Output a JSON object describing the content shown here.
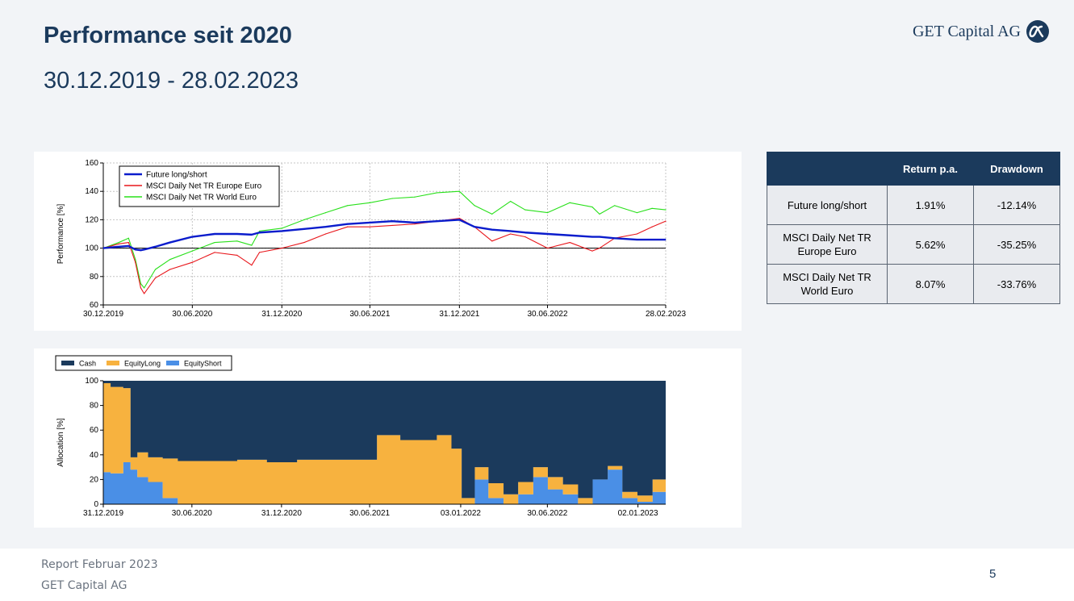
{
  "header": {
    "title": "Performance seit 2020",
    "subtitle": "30.12.2019 - 28.02.2023",
    "logo_text": "GET Capital AG"
  },
  "stats_table": {
    "columns": [
      "",
      "Return p.a.",
      "Drawdown"
    ],
    "rows": [
      {
        "name": "Future long/short",
        "return": "1.91%",
        "drawdown": "-12.14%"
      },
      {
        "name": "MSCI Daily Net TR Europe Euro",
        "return": "5.62%",
        "drawdown": "-35.25%"
      },
      {
        "name": "MSCI Daily Net TR World Euro",
        "return": "8.07%",
        "drawdown": "-33.76%"
      }
    ]
  },
  "footer": {
    "report": "Report Februar 2023",
    "company": "GET Capital AG",
    "page": "5"
  },
  "colors": {
    "navy": "#1b3a5c",
    "future": "#0a1ccc",
    "europe": "#e8161b",
    "world": "#28e01a",
    "cash": "#1b3a5c",
    "equity_long": "#f7b23f",
    "equity_short": "#4a8fe6"
  },
  "chart_data": [
    {
      "type": "line",
      "ylabel": "Performance [%]",
      "xlabel": "",
      "ylim": [
        60,
        160
      ],
      "yticks": [
        60,
        80,
        100,
        120,
        140,
        160
      ],
      "xtick_labels": [
        "30.12.2019",
        "30.06.2020",
        "31.12.2020",
        "30.06.2021",
        "31.12.2021",
        "30.06.2022",
        "28.02.2023"
      ],
      "grid": true,
      "legend_position": "top-left",
      "x": [
        "2019-12-30",
        "2020-01-31",
        "2020-02-20",
        "2020-03-05",
        "2020-03-16",
        "2020-03-23",
        "2020-04-15",
        "2020-05-15",
        "2020-06-30",
        "2020-08-15",
        "2020-09-30",
        "2020-10-30",
        "2020-11-15",
        "2020-12-31",
        "2021-02-15",
        "2021-03-31",
        "2021-05-15",
        "2021-06-30",
        "2021-08-15",
        "2021-09-30",
        "2021-11-15",
        "2021-12-31",
        "2022-01-31",
        "2022-03-08",
        "2022-04-15",
        "2022-05-15",
        "2022-06-30",
        "2022-08-15",
        "2022-09-30",
        "2022-10-15",
        "2022-11-15",
        "2022-12-31",
        "2023-01-31",
        "2023-02-28"
      ],
      "series": [
        {
          "name": "Future long/short",
          "values": [
            100,
            101,
            101.5,
            99,
            98.5,
            99,
            101,
            104,
            108,
            110,
            110,
            109.5,
            111,
            112,
            113.5,
            115,
            117,
            118,
            119,
            118,
            119,
            120,
            115,
            113,
            112,
            111,
            110,
            109,
            108,
            108,
            107,
            106,
            106,
            106
          ]
        },
        {
          "name": "MSCI Daily Net TR Europe Euro",
          "values": [
            100,
            103,
            104,
            90,
            72,
            68,
            79,
            85,
            90,
            97,
            95,
            88,
            97,
            100,
            104,
            110,
            115,
            115,
            116,
            117,
            119,
            121,
            115,
            105,
            110,
            108,
            100,
            104,
            98,
            100,
            107,
            110,
            115,
            119
          ]
        },
        {
          "name": "MSCI Daily Net TR World Euro",
          "values": [
            100,
            104,
            107,
            92,
            75,
            72,
            85,
            92,
            98,
            104,
            105,
            102,
            112,
            114,
            120,
            125,
            130,
            132,
            135,
            136,
            139,
            140,
            130,
            124,
            133,
            127,
            125,
            132,
            129,
            124,
            130,
            125,
            128,
            127
          ]
        }
      ],
      "reference_line": 100
    },
    {
      "type": "area",
      "stacked": true,
      "ylabel": "Allocation [%]",
      "xlabel": "",
      "ylim": [
        0,
        100
      ],
      "yticks": [
        0,
        20,
        40,
        60,
        80,
        100
      ],
      "xtick_labels": [
        "31.12.2019",
        "30.06.2020",
        "31.12.2020",
        "30.06.2021",
        "03.01.2022",
        "30.06.2022",
        "02.01.2023"
      ],
      "legend_position": "top-left",
      "x": [
        "2019-12-31",
        "2020-01-15",
        "2020-02-10",
        "2020-02-25",
        "2020-03-10",
        "2020-04-01",
        "2020-05-01",
        "2020-06-01",
        "2020-08-01",
        "2020-10-01",
        "2020-12-01",
        "2021-02-01",
        "2021-04-01",
        "2021-05-15",
        "2021-06-01",
        "2021-07-15",
        "2021-09-01",
        "2021-10-01",
        "2021-11-15",
        "2021-12-15",
        "2022-01-05",
        "2022-02-01",
        "2022-03-01",
        "2022-04-01",
        "2022-05-01",
        "2022-06-01",
        "2022-07-01",
        "2022-08-01",
        "2022-09-01",
        "2022-10-01",
        "2022-11-01",
        "2022-12-01",
        "2023-01-01",
        "2023-02-01",
        "2023-02-28"
      ],
      "series": [
        {
          "name": "EquityShort",
          "values": [
            26,
            25,
            34,
            28,
            22,
            18,
            5,
            0,
            0,
            0,
            0,
            0,
            0,
            0,
            0,
            0,
            0,
            0,
            0,
            0,
            0,
            20,
            5,
            0,
            8,
            22,
            12,
            8,
            0,
            20,
            28,
            5,
            2,
            10,
            8
          ]
        },
        {
          "name": "EquityLong",
          "values": [
            72,
            70,
            60,
            10,
            20,
            20,
            32,
            35,
            35,
            36,
            34,
            36,
            36,
            36,
            36,
            56,
            52,
            52,
            56,
            45,
            5,
            10,
            12,
            8,
            10,
            8,
            10,
            8,
            5,
            0,
            3,
            5,
            5,
            10,
            22
          ]
        },
        {
          "name": "Cash",
          "values": [
            2,
            5,
            6,
            62,
            58,
            62,
            63,
            65,
            65,
            64,
            66,
            64,
            64,
            64,
            64,
            44,
            48,
            48,
            44,
            55,
            95,
            70,
            83,
            92,
            82,
            70,
            78,
            84,
            95,
            80,
            69,
            90,
            93,
            80,
            70
          ]
        }
      ]
    }
  ]
}
